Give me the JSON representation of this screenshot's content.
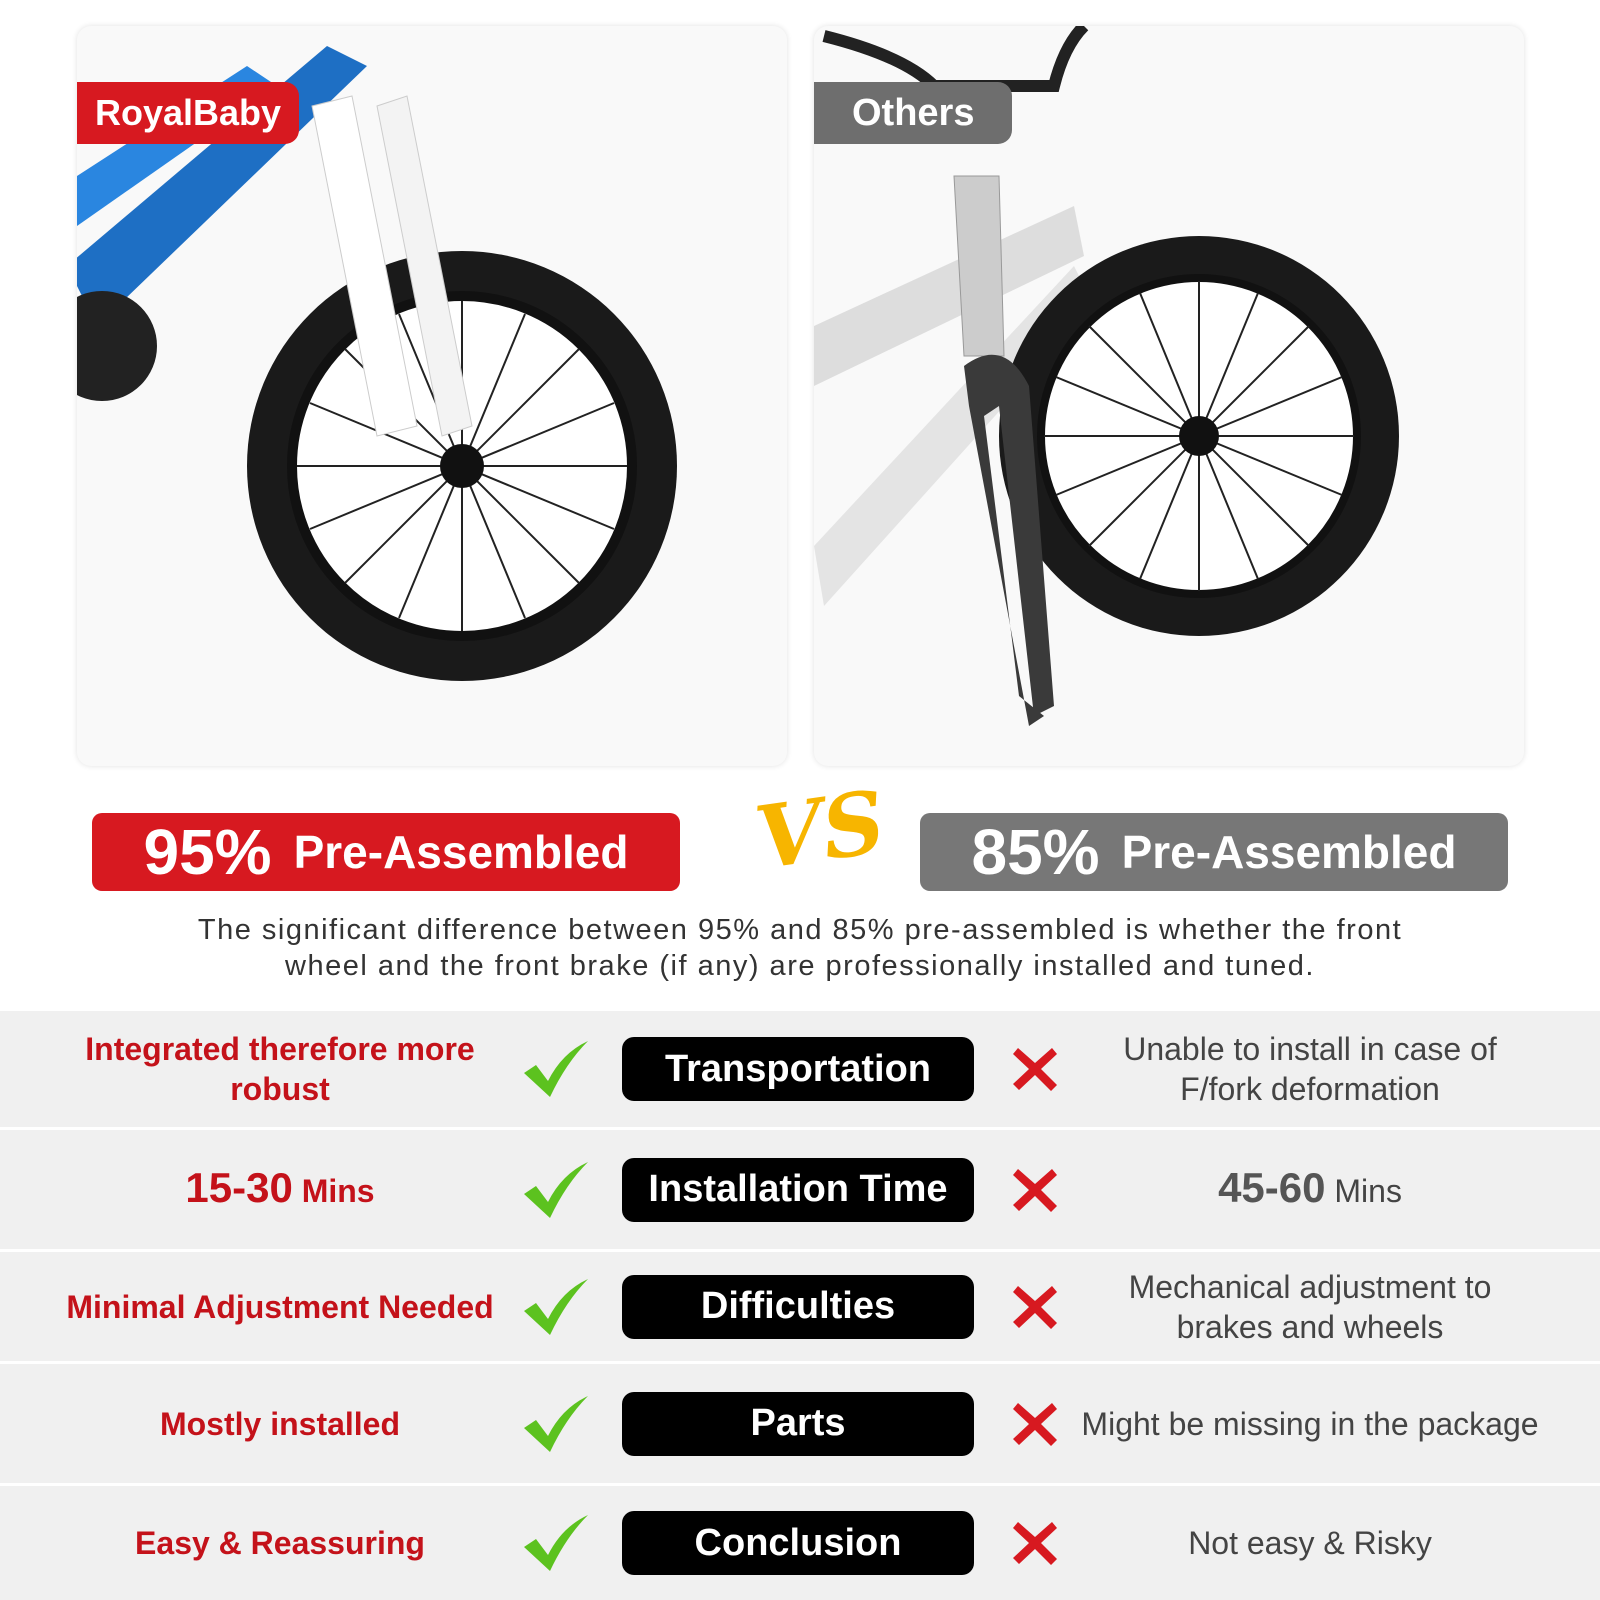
{
  "left_panel": {
    "brand_tag": "RoyalBaby",
    "brand_color": "#d71920"
  },
  "right_panel": {
    "tag": "Others",
    "tag_color": "#6e6e6e"
  },
  "banners": {
    "left": {
      "percent": "95%",
      "label": "Pre-Assembled",
      "color": "#d71920"
    },
    "vs": "VS",
    "right": {
      "percent": "85%",
      "label": "Pre-Assembled",
      "color": "#777777"
    }
  },
  "caption": {
    "line1": "The significant difference between 95% and 85% pre-assembled is whether the front",
    "line2": "wheel and the front brake (if any) are professionally installed and tuned."
  },
  "rows": [
    {
      "left": "Integrated therefore more robust",
      "category": "Transportation",
      "right": "Unable to install in case of F/fork deformation"
    },
    {
      "left_value": "15-30",
      "left_unit": "Mins",
      "category": "Installation Time",
      "right_value": "45-60",
      "right_unit": "Mins"
    },
    {
      "left": "Minimal Adjustment Needed",
      "category": "Difficulties",
      "right": "Mechanical adjustment to brakes and wheels"
    },
    {
      "left": "Mostly installed",
      "category": "Parts",
      "right": "Might be missing in the package"
    },
    {
      "left": "Easy & Reassuring",
      "category": "Conclusion",
      "right": "Not easy & Risky"
    }
  ],
  "icons": {
    "positive": "check-icon",
    "negative": "cross-icon",
    "check_color": "#5cc21f",
    "cross_color": "#d71920"
  }
}
